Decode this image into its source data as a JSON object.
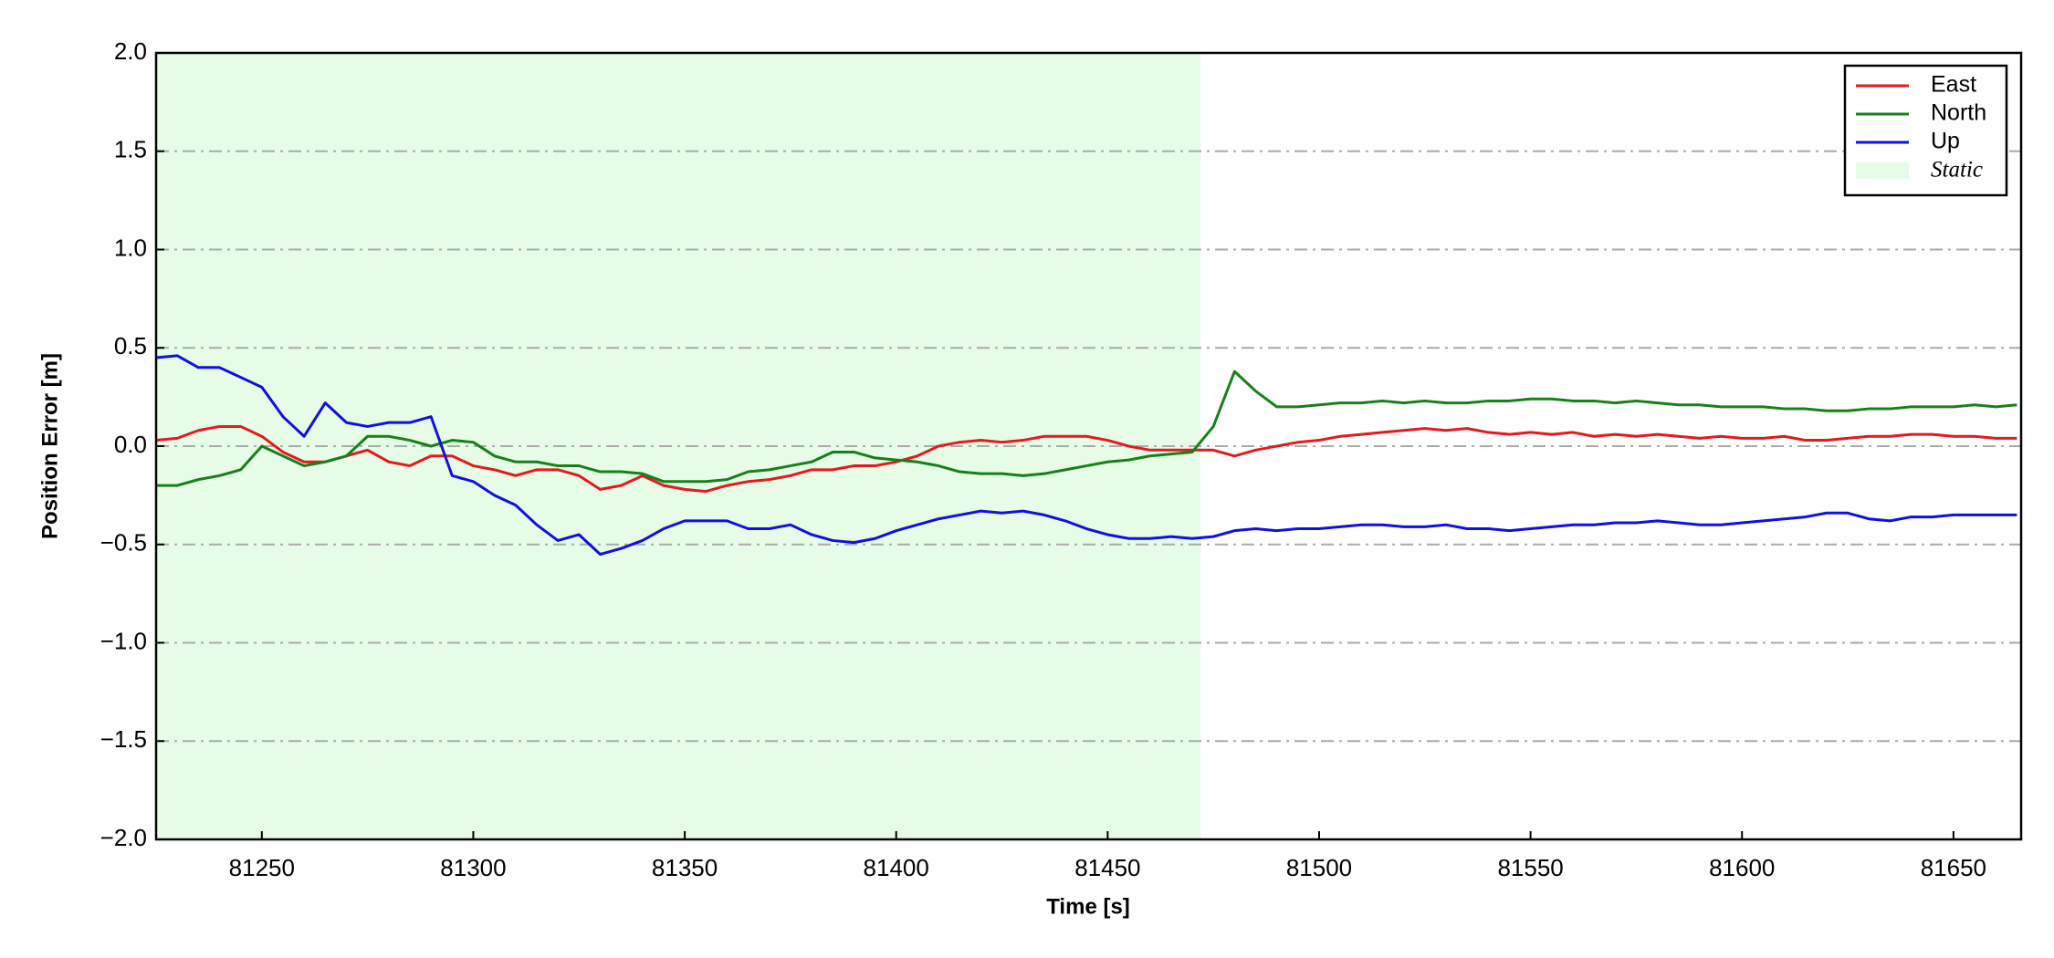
{
  "chart_data": {
    "type": "line",
    "xlabel": "Time [s]",
    "ylabel": "Position Error [m]",
    "x": [
      81225,
      81230,
      81235,
      81240,
      81245,
      81250,
      81255,
      81260,
      81265,
      81270,
      81275,
      81280,
      81285,
      81290,
      81295,
      81300,
      81305,
      81310,
      81315,
      81320,
      81325,
      81330,
      81335,
      81340,
      81345,
      81350,
      81355,
      81360,
      81365,
      81370,
      81375,
      81380,
      81385,
      81390,
      81395,
      81400,
      81405,
      81410,
      81415,
      81420,
      81425,
      81430,
      81435,
      81440,
      81445,
      81450,
      81455,
      81460,
      81465,
      81470,
      81475,
      81480,
      81485,
      81490,
      81495,
      81500,
      81505,
      81510,
      81515,
      81520,
      81525,
      81530,
      81535,
      81540,
      81545,
      81550,
      81555,
      81560,
      81565,
      81570,
      81575,
      81580,
      81585,
      81590,
      81595,
      81600,
      81605,
      81610,
      81615,
      81620,
      81625,
      81630,
      81635,
      81640,
      81645,
      81650,
      81655,
      81660,
      81665
    ],
    "series": [
      {
        "name": "East",
        "color": "#e31a1c",
        "values": [
          0.03,
          0.04,
          0.08,
          0.1,
          0.1,
          0.05,
          -0.03,
          -0.08,
          -0.08,
          -0.05,
          -0.02,
          -0.08,
          -0.1,
          -0.05,
          -0.05,
          -0.1,
          -0.12,
          -0.15,
          -0.12,
          -0.12,
          -0.15,
          -0.22,
          -0.2,
          -0.15,
          -0.2,
          -0.22,
          -0.23,
          -0.2,
          -0.18,
          -0.17,
          -0.15,
          -0.12,
          -0.12,
          -0.1,
          -0.1,
          -0.08,
          -0.05,
          0,
          0.02,
          0.03,
          0.02,
          0.03,
          0.05,
          0.05,
          0.05,
          0.03,
          0,
          -0.02,
          -0.02,
          -0.02,
          -0.02,
          -0.05,
          -0.02,
          0,
          0.02,
          0.03,
          0.05,
          0.06,
          0.07,
          0.08,
          0.09,
          0.08,
          0.09,
          0.07,
          0.06,
          0.07,
          0.06,
          0.07,
          0.05,
          0.06,
          0.05,
          0.06,
          0.05,
          0.04,
          0.05,
          0.04,
          0.04,
          0.05,
          0.03,
          0.03,
          0.04,
          0.05,
          0.05,
          0.06,
          0.06,
          0.05,
          0.05,
          0.04,
          0.04
        ]
      },
      {
        "name": "North",
        "color": "#17801a",
        "values": [
          -0.2,
          -0.2,
          -0.17,
          -0.15,
          -0.12,
          0,
          -0.05,
          -0.1,
          -0.08,
          -0.05,
          0.05,
          0.05,
          0.03,
          0,
          0.03,
          0.02,
          -0.05,
          -0.08,
          -0.08,
          -0.1,
          -0.1,
          -0.13,
          -0.13,
          -0.14,
          -0.18,
          -0.18,
          -0.18,
          -0.17,
          -0.13,
          -0.12,
          -0.1,
          -0.08,
          -0.03,
          -0.03,
          -0.06,
          -0.07,
          -0.08,
          -0.1,
          -0.13,
          -0.14,
          -0.14,
          -0.15,
          -0.14,
          -0.12,
          -0.1,
          -0.08,
          -0.07,
          -0.05,
          -0.04,
          -0.03,
          0.1,
          0.38,
          0.28,
          0.2,
          0.2,
          0.21,
          0.22,
          0.22,
          0.23,
          0.22,
          0.23,
          0.22,
          0.22,
          0.23,
          0.23,
          0.24,
          0.24,
          0.23,
          0.23,
          0.22,
          0.23,
          0.22,
          0.21,
          0.21,
          0.2,
          0.2,
          0.2,
          0.19,
          0.19,
          0.18,
          0.18,
          0.19,
          0.19,
          0.2,
          0.2,
          0.2,
          0.21,
          0.2,
          0.21
        ]
      },
      {
        "name": "Up",
        "color": "#1010e0",
        "values": [
          0.45,
          0.46,
          0.4,
          0.4,
          0.35,
          0.3,
          0.15,
          0.05,
          0.22,
          0.12,
          0.1,
          0.12,
          0.12,
          0.15,
          -0.15,
          -0.18,
          -0.25,
          -0.3,
          -0.4,
          -0.48,
          -0.45,
          -0.55,
          -0.52,
          -0.48,
          -0.42,
          -0.38,
          -0.38,
          -0.38,
          -0.42,
          -0.42,
          -0.4,
          -0.45,
          -0.48,
          -0.49,
          -0.47,
          -0.43,
          -0.4,
          -0.37,
          -0.35,
          -0.33,
          -0.34,
          -0.33,
          -0.35,
          -0.38,
          -0.42,
          -0.45,
          -0.47,
          -0.47,
          -0.46,
          -0.47,
          -0.46,
          -0.43,
          -0.42,
          -0.43,
          -0.42,
          -0.42,
          -0.41,
          -0.4,
          -0.4,
          -0.41,
          -0.41,
          -0.4,
          -0.42,
          -0.42,
          -0.43,
          -0.42,
          -0.41,
          -0.4,
          -0.4,
          -0.39,
          -0.39,
          -0.38,
          -0.39,
          -0.4,
          -0.4,
          -0.39,
          -0.38,
          -0.37,
          -0.36,
          -0.34,
          -0.34,
          -0.37,
          -0.38,
          -0.36,
          -0.36,
          -0.35,
          -0.35,
          -0.35,
          -0.35
        ]
      }
    ],
    "shaded_region": {
      "name": "Static",
      "xmin": 81225,
      "xmax": 81472,
      "color": "#e6fce6"
    },
    "xlim": [
      81225,
      81666
    ],
    "xticks": [
      81250,
      81300,
      81350,
      81400,
      81450,
      81500,
      81550,
      81600,
      81650
    ],
    "ylim": [
      -2.0,
      2.0
    ],
    "yticks": [
      {
        "value": -2.0,
        "label": "−2.0"
      },
      {
        "value": -1.5,
        "label": "−1.5"
      },
      {
        "value": -1.0,
        "label": "−1.0"
      },
      {
        "value": -0.5,
        "label": "−0.5"
      },
      {
        "value": 0.0,
        "label": "0.0"
      },
      {
        "value": 0.5,
        "label": "0.5"
      },
      {
        "value": 1.0,
        "label": "1.0"
      },
      {
        "value": 1.5,
        "label": "1.5"
      },
      {
        "value": 2.0,
        "label": "2.0"
      }
    ],
    "grid": true,
    "legend": "upper right"
  }
}
